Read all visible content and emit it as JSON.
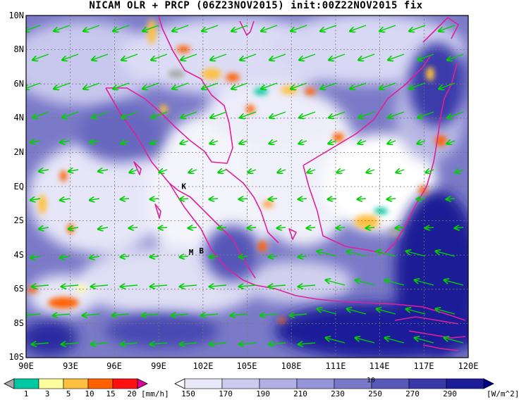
{
  "title": "NICAM OLR + PRCP (06Z23NOV2015) init:00Z22NOV2015 fix",
  "lat_ticks": [
    "10N",
    "8N",
    "6N",
    "4N",
    "2N",
    "EQ",
    "2S",
    "4S",
    "6S",
    "8S",
    "10S"
  ],
  "lon_ticks": [
    "90E",
    "93E",
    "96E",
    "99E",
    "102E",
    "105E",
    "108E",
    "111E",
    "114E",
    "117E",
    "120E"
  ],
  "station_markers": [
    {
      "label": "K",
      "lon": 100.7,
      "lat": -0.15
    },
    {
      "label": "M",
      "lon": 101.2,
      "lat": -4.0
    },
    {
      "label": "B",
      "lon": 101.9,
      "lat": -3.9
    }
  ],
  "prcp_colorbar": {
    "labels": [
      "1",
      "3",
      "5",
      "10",
      "15",
      "20"
    ],
    "unit": "[mm/h]",
    "colors": [
      "#a8a8a8",
      "#00c8a0",
      "#ffffa0",
      "#ffc040",
      "#ff6000",
      "#ff1010",
      "#e000a0"
    ]
  },
  "olr_colorbar": {
    "labels": [
      "150",
      "170",
      "190",
      "210",
      "230",
      "250",
      "270",
      "290"
    ],
    "unit": "[W/m^2]",
    "colors": [
      "#ffffff",
      "#e8e8f8",
      "#ccccf0",
      "#b0b0e4",
      "#9494d8",
      "#7878c8",
      "#5858b8",
      "#3838a8",
      "#1c1c98",
      "#000088"
    ]
  },
  "vector_reference": "10",
  "colors": {
    "coast": "#e0209a",
    "wind_arrow": "#00d000",
    "ocean_deep": "#1a1a96"
  }
}
